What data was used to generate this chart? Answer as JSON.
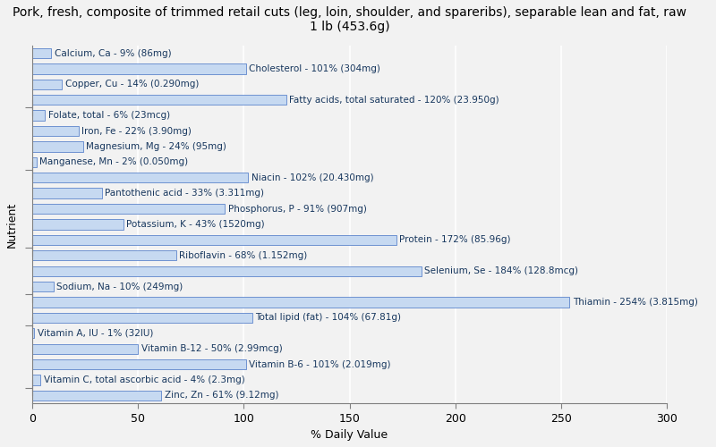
{
  "title": "Pork, fresh, composite of trimmed retail cuts (leg, loin, shoulder, and spareribs), separable lean and fat, raw\n1 lb (453.6g)",
  "xlabel": "% Daily Value",
  "ylabel": "Nutrient",
  "nutrients": [
    "Calcium, Ca - 9% (86mg)",
    "Cholesterol - 101% (304mg)",
    "Copper, Cu - 14% (0.290mg)",
    "Fatty acids, total saturated - 120% (23.950g)",
    "Folate, total - 6% (23mcg)",
    "Iron, Fe - 22% (3.90mg)",
    "Magnesium, Mg - 24% (95mg)",
    "Manganese, Mn - 2% (0.050mg)",
    "Niacin - 102% (20.430mg)",
    "Pantothenic acid - 33% (3.311mg)",
    "Phosphorus, P - 91% (907mg)",
    "Potassium, K - 43% (1520mg)",
    "Protein - 172% (85.96g)",
    "Riboflavin - 68% (1.152mg)",
    "Selenium, Se - 184% (128.8mcg)",
    "Sodium, Na - 10% (249mg)",
    "Thiamin - 254% (3.815mg)",
    "Total lipid (fat) - 104% (67.81g)",
    "Vitamin A, IU - 1% (32IU)",
    "Vitamin B-12 - 50% (2.99mcg)",
    "Vitamin B-6 - 101% (2.019mg)",
    "Vitamin C, total ascorbic acid - 4% (2.3mg)",
    "Zinc, Zn - 61% (9.12mg)"
  ],
  "values": [
    9,
    101,
    14,
    120,
    6,
    22,
    24,
    2,
    102,
    33,
    91,
    43,
    172,
    68,
    184,
    10,
    254,
    104,
    1,
    50,
    101,
    4,
    61
  ],
  "bar_color": "#c6d9f1",
  "bar_edgecolor": "#4472c4",
  "background_color": "#f2f2f2",
  "xlim": [
    0,
    300
  ],
  "xticks": [
    0,
    50,
    100,
    150,
    200,
    250,
    300
  ],
  "title_fontsize": 10,
  "axis_label_fontsize": 9,
  "tick_fontsize": 9,
  "bar_label_fontsize": 7.5,
  "label_color": "#17375e",
  "grid_color": "#ffffff",
  "spine_color": "#808080",
  "group_tick_positions": [
    3.5,
    7.5,
    12.5,
    15.5,
    17.5,
    21.5
  ]
}
